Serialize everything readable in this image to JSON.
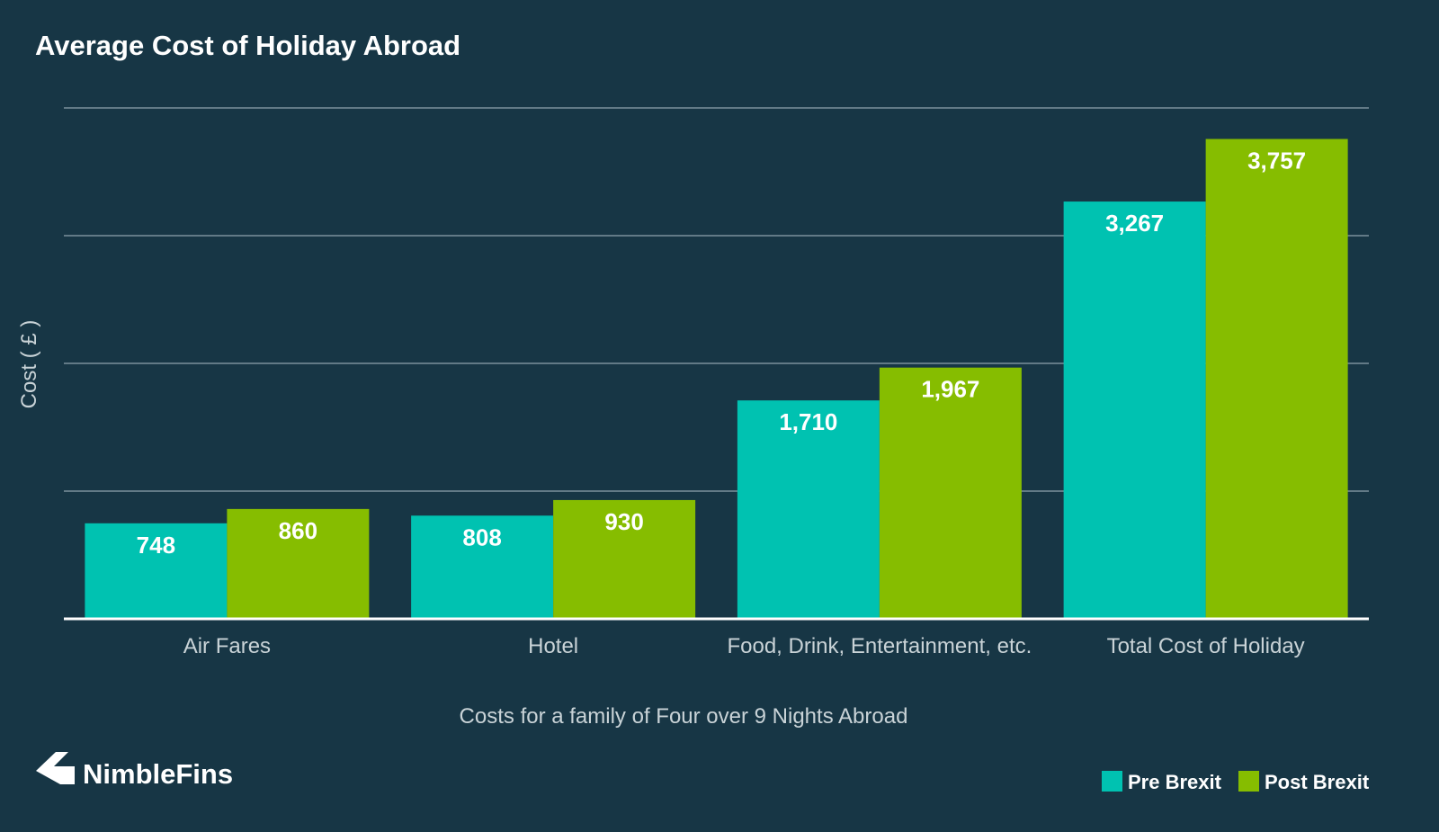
{
  "brand": {
    "name": "NimbleFins",
    "logo_icon": "chevron-left-arrow-icon"
  },
  "colors": {
    "background": "#173645",
    "pre_brexit": "#00c2b1",
    "post_brexit": "#86bd00"
  },
  "chart_data": {
    "type": "bar",
    "title": "Average Cost of Holiday Abroad",
    "xlabel": "Costs for a family of Four over 9 Nights Abroad",
    "ylabel": "Cost ( £ )",
    "ylim": [
      0,
      4000
    ],
    "grid": true,
    "legend_position": "bottom-right",
    "categories": [
      "Air Fares",
      "Hotel",
      "Food, Drink, Entertainment, etc.",
      "Total Cost of Holiday"
    ],
    "series": [
      {
        "name": "Pre Brexit",
        "values": [
          748,
          808,
          1710,
          3267
        ],
        "labels": [
          "748",
          "808",
          "1,710",
          "3,267"
        ],
        "color": "#00c2b1"
      },
      {
        "name": "Post Brexit",
        "values": [
          860,
          930,
          1967,
          3757
        ],
        "labels": [
          "860",
          "930",
          "1,967",
          "3,757"
        ],
        "color": "#86bd00"
      }
    ]
  }
}
